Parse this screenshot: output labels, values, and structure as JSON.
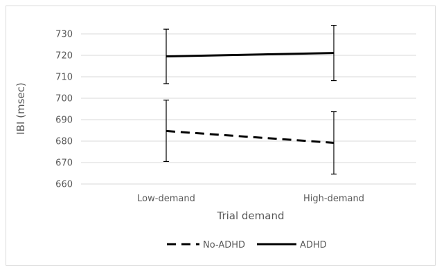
{
  "chart_data": {
    "type": "line",
    "xlabel": "Trial demand",
    "ylabel": "IBI (msec)",
    "categories": [
      "Low-demand",
      "High-demand"
    ],
    "ylim": [
      660,
      730
    ],
    "yticks": [
      660,
      670,
      680,
      690,
      700,
      710,
      720,
      730
    ],
    "grid": true,
    "legend_position": "bottom",
    "series": [
      {
        "name": "No-ADHD",
        "line_style": "dashed",
        "color": "#000000",
        "values": [
          684.7,
          679.2
        ],
        "error_low": [
          670.5,
          664.6
        ],
        "error_high": [
          699.1,
          693.7
        ]
      },
      {
        "name": "ADHD",
        "line_style": "solid",
        "color": "#000000",
        "values": [
          719.5,
          721.1
        ],
        "error_low": [
          706.8,
          708.2
        ],
        "error_high": [
          732.2,
          734.0
        ]
      }
    ]
  }
}
